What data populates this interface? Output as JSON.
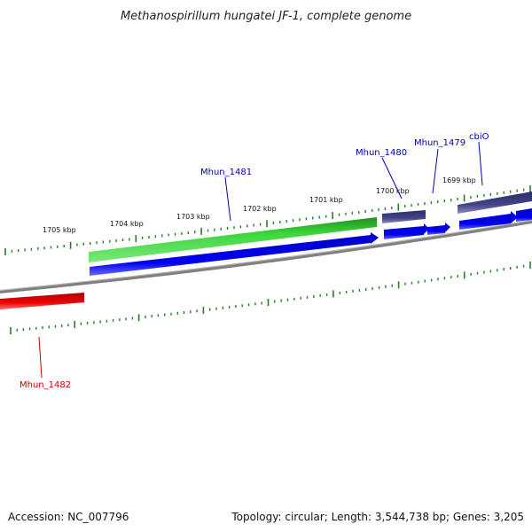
{
  "title": "Methanospirillum hungatei JF-1, complete genome",
  "ticks": [
    "1705 kbp",
    "1704 kbp",
    "1703 kbp",
    "1702 kbp",
    "1701 kbp",
    "1700 kbp",
    "1699 kbp"
  ],
  "genes": [
    {
      "name": "Mhun_1481",
      "color": "#0000aa"
    },
    {
      "name": "Mhun_1480",
      "color": "#0000aa"
    },
    {
      "name": "Mhun_1479",
      "color": "#0000aa"
    },
    {
      "name": "cbiO",
      "color": "#0000aa"
    },
    {
      "name": "Mhun_1482",
      "color": "#cc0000"
    }
  ],
  "colors": {
    "backbone": "#808080",
    "cds": "#0000ee",
    "gene_green": "#33cc33",
    "gene_purple": "#3d3d80",
    "gene_red": "#dd0000",
    "ticks": "#2a7a2a"
  },
  "footer": {
    "accession": "Accession: NC_007796",
    "topology": "Topology: circular; Length: 3,544,738 bp; Genes: 3,205"
  }
}
